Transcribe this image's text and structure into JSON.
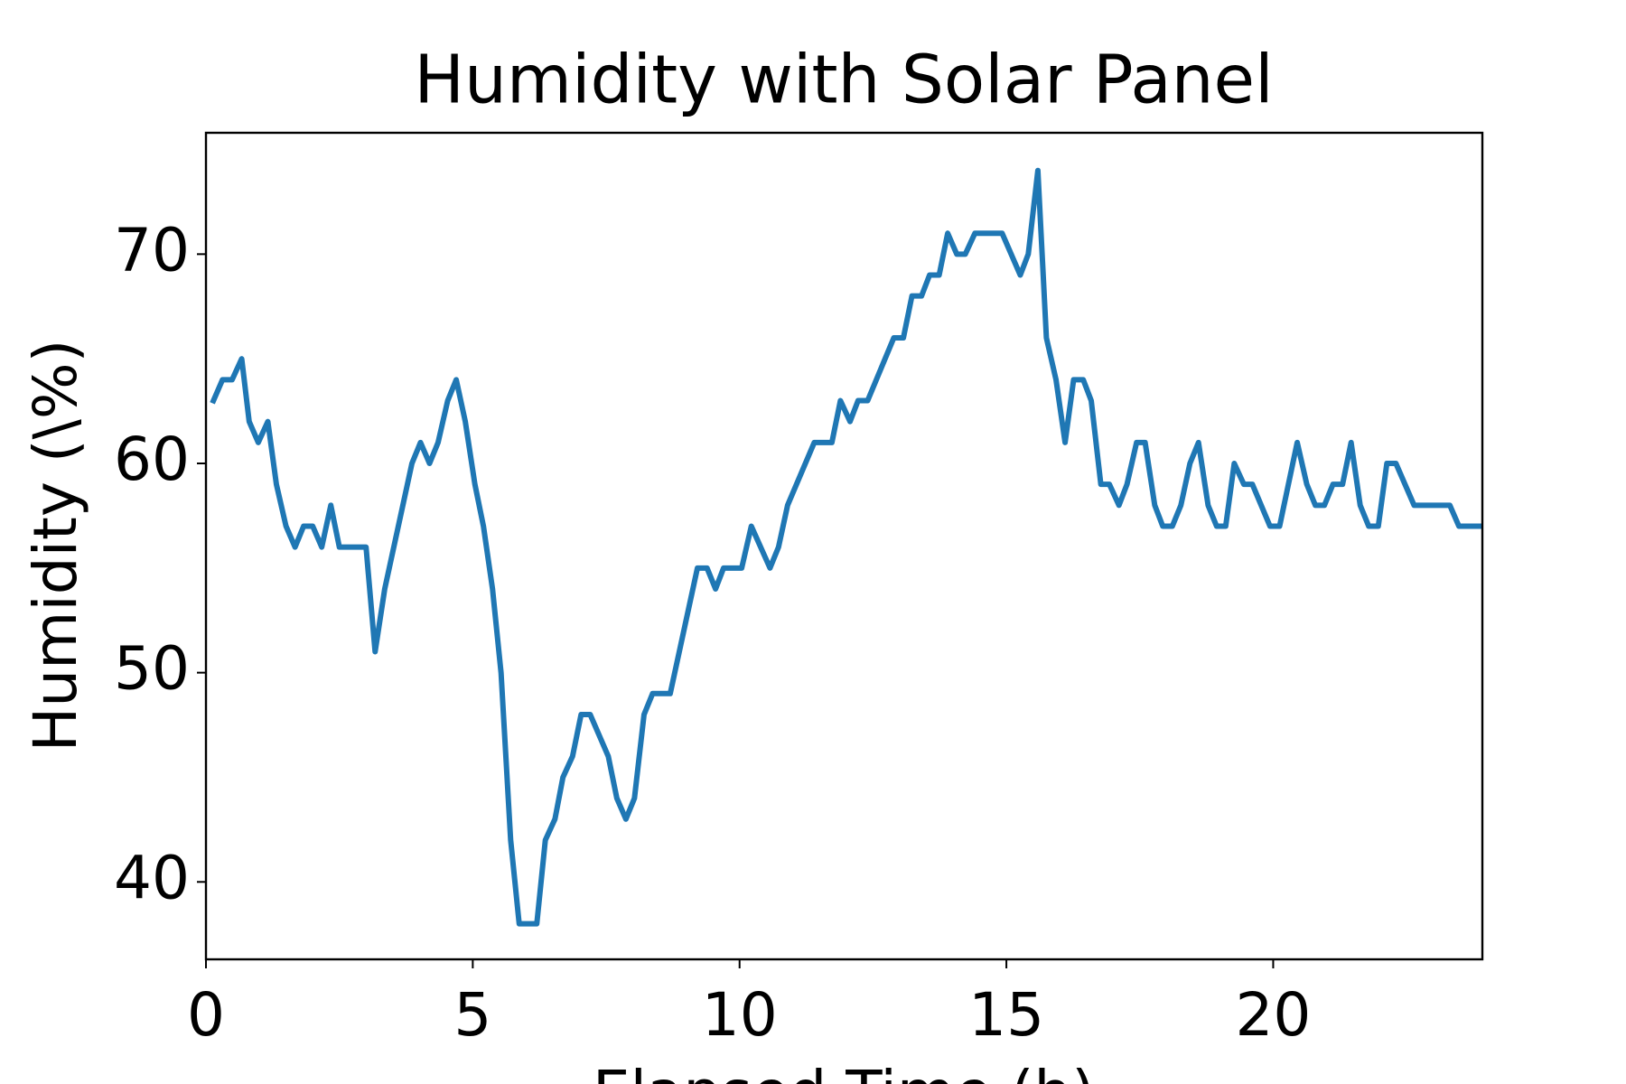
{
  "chart_data": {
    "type": "line",
    "title": "Humidity with Solar Panel",
    "x_label": "Elapsed Time (h)",
    "y_label": "Humidity (\\%)",
    "xlim": [
      0,
      23.92
    ],
    "ylim": [
      36.3,
      75.8
    ],
    "xticks": [
      0,
      5,
      10,
      15,
      20
    ],
    "yticks": [
      40,
      50,
      60,
      70
    ],
    "grid": false,
    "series": [
      {
        "name": "Humidity",
        "color": "#1f77b4",
        "x": [
          0.14,
          0.31,
          0.49,
          0.67,
          0.81,
          0.98,
          1.16,
          1.32,
          1.5,
          1.67,
          1.83,
          2.0,
          2.17,
          2.34,
          2.5,
          3.0,
          3.17,
          3.35,
          3.86,
          4.02,
          4.19,
          4.35,
          4.53,
          4.69,
          4.86,
          5.04,
          5.2,
          5.37,
          5.53,
          5.71,
          5.87,
          6.2,
          6.36,
          6.54,
          6.69,
          6.87,
          7.03,
          7.2,
          7.54,
          7.7,
          7.87,
          8.03,
          8.21,
          8.37,
          8.7,
          9.21,
          9.39,
          9.55,
          9.7,
          10.04,
          10.22,
          10.57,
          10.73,
          10.9,
          11.4,
          11.73,
          11.89,
          12.07,
          12.22,
          12.4,
          12.89,
          13.07,
          13.23,
          13.41,
          13.56,
          13.74,
          13.9,
          14.07,
          14.23,
          14.41,
          14.92,
          15.26,
          15.41,
          15.59,
          15.75,
          15.93,
          16.1,
          16.26,
          16.44,
          16.59,
          16.77,
          16.93,
          17.11,
          17.26,
          17.44,
          17.6,
          17.78,
          17.93,
          18.11,
          18.27,
          18.44,
          18.6,
          18.78,
          18.94,
          19.11,
          19.27,
          19.45,
          19.61,
          19.94,
          20.12,
          20.45,
          20.63,
          20.79,
          20.96,
          21.12,
          21.3,
          21.46,
          21.63,
          21.79,
          21.97,
          22.13,
          22.3,
          22.64,
          23.31,
          23.48,
          23.92
        ],
        "values": [
          63,
          64,
          64,
          65,
          62,
          61,
          62,
          59,
          57,
          56,
          57,
          57,
          56,
          58,
          56,
          56,
          51,
          54,
          60,
          61,
          60,
          61,
          63,
          64,
          62,
          59,
          57,
          54,
          50,
          42,
          38,
          38,
          42,
          43,
          45,
          46,
          48,
          48,
          46,
          44,
          43,
          44,
          48,
          49,
          49,
          55,
          55,
          54,
          55,
          55,
          57,
          55,
          56,
          58,
          61,
          61,
          63,
          62,
          63,
          63,
          66,
          66,
          68,
          68,
          69,
          69,
          71,
          70,
          70,
          71,
          71,
          69,
          70,
          74,
          66,
          64,
          61,
          64,
          64,
          63,
          59,
          59,
          58,
          59,
          61,
          61,
          58,
          57,
          57,
          58,
          60,
          61,
          58,
          57,
          57,
          60,
          59,
          59,
          57,
          57,
          61,
          59,
          58,
          58,
          59,
          59,
          61,
          58,
          57,
          57,
          60,
          60,
          58,
          58,
          57,
          57
        ]
      }
    ]
  }
}
